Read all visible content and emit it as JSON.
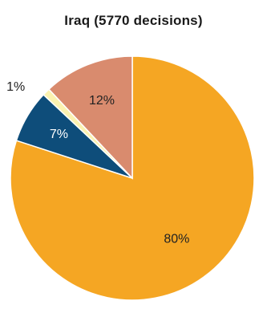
{
  "chart_data": {
    "type": "pie",
    "title": "Iraq (5770 decisions)",
    "values": [
      80,
      7,
      1,
      12
    ],
    "labels": [
      "80%",
      "7%",
      "1%",
      "12%"
    ],
    "colors": [
      "#f5a623",
      "#0e4d7a",
      "#fbf2b0",
      "#d98b6e"
    ],
    "label_colors": [
      "#222222",
      "#ffffff",
      "#222222",
      "#222222"
    ],
    "start_angle_deg": 0,
    "direction": "clockwise"
  }
}
